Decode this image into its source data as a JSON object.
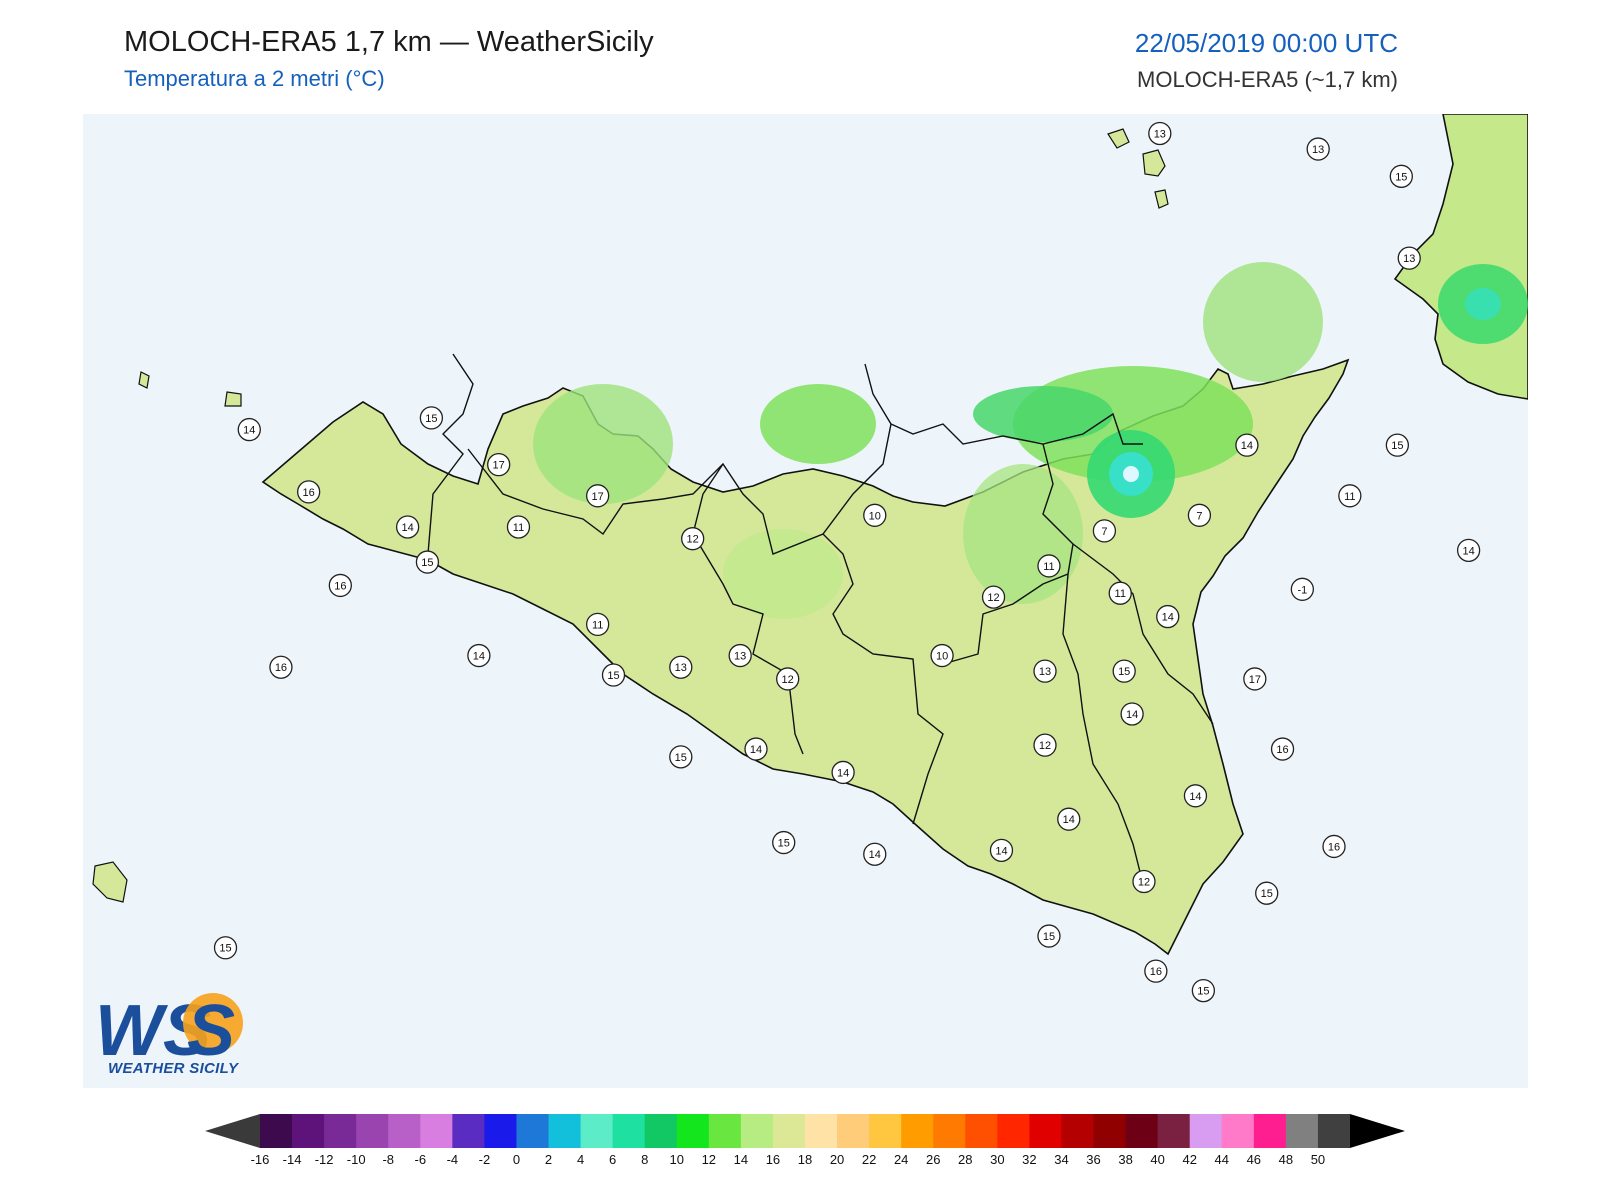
{
  "header": {
    "title": "MOLOCH-ERA5 1,7 km — WeatherSicily",
    "subtitle": "Temperatura a 2 metri (°C)",
    "datetime": "22/05/2019 00:00 UTC",
    "model_label": "MOLOCH-ERA5 (~1,7 km)"
  },
  "logo": {
    "text": "WEATHER SICILY",
    "mark": "WS"
  },
  "colors": {
    "sea": "#edf5fa",
    "land_base": "#d5e89a",
    "accent_blue": "#1560bd"
  },
  "colorbar": {
    "ticks": [
      "-16",
      "-14",
      "-12",
      "-10",
      "-8",
      "-6",
      "-4",
      "-2",
      "0",
      "2",
      "4",
      "6",
      "8",
      "10",
      "12",
      "14",
      "16",
      "18",
      "20",
      "22",
      "24",
      "26",
      "28",
      "30",
      "32",
      "34",
      "36",
      "38",
      "40",
      "42",
      "44",
      "46",
      "48",
      "50"
    ],
    "colors": [
      "#3d0a4d",
      "#5e137a",
      "#7a2a96",
      "#9a44b0",
      "#b860c7",
      "#d87ee0",
      "#5a2cc2",
      "#1a1aeb",
      "#1e78d8",
      "#12c0dc",
      "#5cecc8",
      "#1ee0a0",
      "#12c864",
      "#14e61e",
      "#6ae640",
      "#b6ec82",
      "#dde896",
      "#ffe2a6",
      "#ffcc7a",
      "#ffc640",
      "#ff9d00",
      "#ff7a00",
      "#ff4f00",
      "#ff2600",
      "#e00000",
      "#b40000",
      "#900000",
      "#6e0016",
      "#7a2040",
      "#d89cf0",
      "#ff7ac8",
      "#ff1e90",
      "#808080",
      "#404040"
    ]
  },
  "stations": [
    {
      "value": "13",
      "lon": 14.62,
      "lat": 38.9
    },
    {
      "value": "13",
      "lon": 15.02,
      "lat": 38.86
    },
    {
      "value": "15",
      "lon": 15.23,
      "lat": 38.79
    },
    {
      "value": "13",
      "lon": 15.25,
      "lat": 38.58
    },
    {
      "value": "14",
      "lon": 12.32,
      "lat": 38.14
    },
    {
      "value": "15",
      "lon": 12.78,
      "lat": 38.17
    },
    {
      "value": "16",
      "lon": 12.47,
      "lat": 37.98
    },
    {
      "value": "14",
      "lon": 12.72,
      "lat": 37.89
    },
    {
      "value": "17",
      "lon": 12.95,
      "lat": 38.05
    },
    {
      "value": "17",
      "lon": 13.2,
      "lat": 37.97
    },
    {
      "value": "11",
      "lon": 13.0,
      "lat": 37.89
    },
    {
      "value": "12",
      "lon": 13.44,
      "lat": 37.86
    },
    {
      "value": "10",
      "lon": 13.9,
      "lat": 37.92
    },
    {
      "value": "7",
      "lon": 14.48,
      "lat": 37.88
    },
    {
      "value": "7",
      "lon": 14.72,
      "lat": 37.92
    },
    {
      "value": "14",
      "lon": 14.84,
      "lat": 38.1
    },
    {
      "value": "15",
      "lon": 15.22,
      "lat": 38.1
    },
    {
      "value": "11",
      "lon": 15.1,
      "lat": 37.97
    },
    {
      "value": "11",
      "lon": 14.34,
      "lat": 37.79
    },
    {
      "value": "14",
      "lon": 15.4,
      "lat": 37.83
    },
    {
      "value": "-1",
      "lon": 14.98,
      "lat": 37.73
    },
    {
      "value": "11",
      "lon": 14.52,
      "lat": 37.72
    },
    {
      "value": "14",
      "lon": 14.64,
      "lat": 37.66
    },
    {
      "value": "12",
      "lon": 14.2,
      "lat": 37.71
    },
    {
      "value": "15",
      "lon": 12.77,
      "lat": 37.8
    },
    {
      "value": "16",
      "lon": 12.55,
      "lat": 37.74
    },
    {
      "value": "16",
      "lon": 12.4,
      "lat": 37.53
    },
    {
      "value": "11",
      "lon": 13.2,
      "lat": 37.64
    },
    {
      "value": "14",
      "lon": 12.9,
      "lat": 37.56
    },
    {
      "value": "15",
      "lon": 13.24,
      "lat": 37.51
    },
    {
      "value": "13",
      "lon": 13.41,
      "lat": 37.53
    },
    {
      "value": "13",
      "lon": 13.56,
      "lat": 37.56
    },
    {
      "value": "12",
      "lon": 13.68,
      "lat": 37.5
    },
    {
      "value": "10",
      "lon": 14.07,
      "lat": 37.56
    },
    {
      "value": "13",
      "lon": 14.33,
      "lat": 37.52
    },
    {
      "value": "15",
      "lon": 14.53,
      "lat": 37.52
    },
    {
      "value": "17",
      "lon": 14.86,
      "lat": 37.5
    },
    {
      "value": "14",
      "lon": 14.55,
      "lat": 37.41
    },
    {
      "value": "12",
      "lon": 14.33,
      "lat": 37.33
    },
    {
      "value": "15",
      "lon": 13.41,
      "lat": 37.3
    },
    {
      "value": "14",
      "lon": 13.6,
      "lat": 37.32
    },
    {
      "value": "14",
      "lon": 13.82,
      "lat": 37.26
    },
    {
      "value": "16",
      "lon": 14.93,
      "lat": 37.32
    },
    {
      "value": "14",
      "lon": 14.71,
      "lat": 37.2
    },
    {
      "value": "14",
      "lon": 14.39,
      "lat": 37.14
    },
    {
      "value": "15",
      "lon": 13.67,
      "lat": 37.08
    },
    {
      "value": "14",
      "lon": 13.9,
      "lat": 37.05
    },
    {
      "value": "14",
      "lon": 14.22,
      "lat": 37.06
    },
    {
      "value": "16",
      "lon": 15.06,
      "lat": 37.07
    },
    {
      "value": "12",
      "lon": 14.58,
      "lat": 36.98
    },
    {
      "value": "15",
      "lon": 14.89,
      "lat": 36.95
    },
    {
      "value": "15",
      "lon": 14.34,
      "lat": 36.84
    },
    {
      "value": "16",
      "lon": 14.61,
      "lat": 36.75
    },
    {
      "value": "15",
      "lon": 14.73,
      "lat": 36.7
    },
    {
      "value": "15",
      "lon": 12.26,
      "lat": 36.81
    }
  ]
}
